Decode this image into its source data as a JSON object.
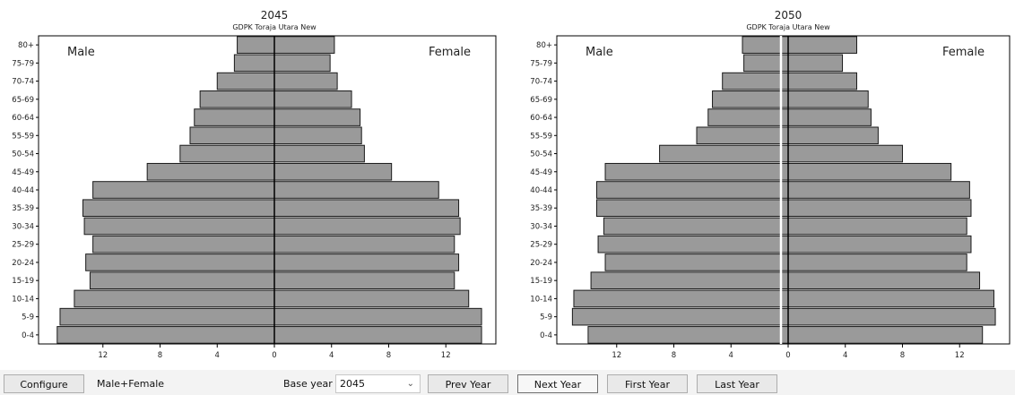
{
  "charts": [
    {
      "year_title": "2045",
      "subtitle": "GDPK Toraja Utara New",
      "male_label": "Male",
      "female_label": "Female"
    },
    {
      "year_title": "2050",
      "subtitle": "GDPK Toraja Utara New",
      "male_label": "Male",
      "female_label": "Female"
    }
  ],
  "chart_data": [
    {
      "type": "bar",
      "orientation": "horizontal-pyramid",
      "title": "2045",
      "subtitle": "GDPK Toraja Utara New",
      "categories": [
        "80+",
        "75-79",
        "70-74",
        "65-69",
        "60-64",
        "55-59",
        "50-54",
        "45-49",
        "40-44",
        "35-39",
        "30-34",
        "25-29",
        "20-24",
        "15-19",
        "10-14",
        "5-9",
        "0-4"
      ],
      "series": [
        {
          "name": "Male",
          "values": [
            2.6,
            2.8,
            4.0,
            5.2,
            5.6,
            5.9,
            6.6,
            8.9,
            12.7,
            13.4,
            13.3,
            12.7,
            13.2,
            12.9,
            14.0,
            15.0,
            15.2
          ]
        },
        {
          "name": "Female",
          "values": [
            4.2,
            3.9,
            4.4,
            5.4,
            6.0,
            6.1,
            6.3,
            8.2,
            11.5,
            12.9,
            13.0,
            12.6,
            12.9,
            12.6,
            13.6,
            14.5,
            14.5
          ]
        }
      ],
      "xticks": [
        "12",
        "8",
        "4",
        "0",
        "4",
        "8",
        "12"
      ],
      "xlim": [
        -15.5,
        15.5
      ],
      "grid": false
    },
    {
      "type": "bar",
      "orientation": "horizontal-pyramid",
      "title": "2050",
      "subtitle": "GDPK Toraja Utara New",
      "categories": [
        "80+",
        "75-79",
        "70-74",
        "65-69",
        "60-64",
        "55-59",
        "50-54",
        "45-49",
        "40-44",
        "35-39",
        "30-34",
        "25-29",
        "20-24",
        "15-19",
        "10-14",
        "5-9",
        "0-4"
      ],
      "series": [
        {
          "name": "Male",
          "values": [
            3.2,
            3.1,
            4.6,
            5.3,
            5.6,
            6.4,
            9.0,
            12.8,
            13.4,
            13.4,
            12.9,
            13.3,
            12.8,
            13.8,
            15.0,
            15.1,
            14.0
          ]
        },
        {
          "name": "Female",
          "values": [
            4.8,
            3.8,
            4.8,
            5.6,
            5.8,
            6.3,
            8.0,
            11.4,
            12.7,
            12.8,
            12.5,
            12.8,
            12.5,
            13.4,
            14.4,
            14.5,
            13.6
          ]
        }
      ],
      "xticks": [
        "12",
        "8",
        "4",
        "0",
        "4",
        "8",
        "12"
      ],
      "xlim": [
        -15.5,
        15.5
      ],
      "grid": false
    }
  ],
  "toolbar": {
    "configure_label": "Configure",
    "sex_label": "Male+Female",
    "base_year_label": "Base year",
    "base_year_value": "2045",
    "prev_year_label": "Prev Year",
    "next_year_label": "Next Year",
    "first_year_label": "First Year",
    "last_year_label": "Last Year"
  },
  "colors": {
    "bar_fill": "#9a9a9a",
    "bar_stroke": "#1a1a1a",
    "axis": "#000000"
  }
}
